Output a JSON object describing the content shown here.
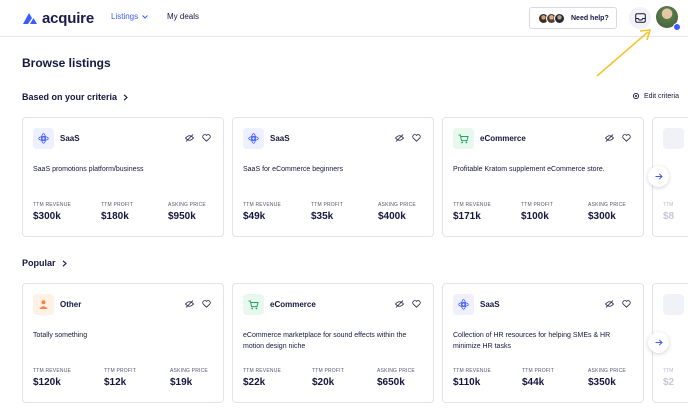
{
  "header": {
    "brand": "acquire",
    "nav": {
      "listings": "Listings",
      "my_deals": "My deals"
    },
    "help": "Need help?"
  },
  "page": {
    "title": "Browse listings"
  },
  "sections": {
    "criteria": {
      "title": "Based on your criteria",
      "edit_label": "Edit criteria",
      "cards": [
        {
          "category": "SaaS",
          "description": "SaaS promotions platform/business",
          "metrics": [
            {
              "label": "TTM REVENUE",
              "value": "$300k"
            },
            {
              "label": "TTM PROFIT",
              "value": "$180k"
            },
            {
              "label": "ASKING PRICE",
              "value": "$950k"
            }
          ]
        },
        {
          "category": "SaaS",
          "description": "SaaS for eCommerce beginners",
          "metrics": [
            {
              "label": "TTM REVENUE",
              "value": "$49k"
            },
            {
              "label": "TTM PROFIT",
              "value": "$35k"
            },
            {
              "label": "ASKING PRICE",
              "value": "$400k"
            }
          ]
        },
        {
          "category": "eCommerce",
          "description": "Profitable Kratom supplement eCommerce store.",
          "metrics": [
            {
              "label": "TTM REVENUE",
              "value": "$171k"
            },
            {
              "label": "TTM PROFIT",
              "value": "$100k"
            },
            {
              "label": "ASKING PRICE",
              "value": "$300k"
            }
          ]
        }
      ],
      "peek": {
        "label": "TTM",
        "value": "$8"
      }
    },
    "popular": {
      "title": "Popular",
      "cards": [
        {
          "category": "Other",
          "description": "Totally something",
          "metrics": [
            {
              "label": "TTM REVENUE",
              "value": "$120k"
            },
            {
              "label": "TTM PROFIT",
              "value": "$12k"
            },
            {
              "label": "ASKING PRICE",
              "value": "$19k"
            }
          ]
        },
        {
          "category": "eCommerce",
          "description": "eCommerce marketplace for sound effects within the motion design niche",
          "metrics": [
            {
              "label": "TTM REVENUE",
              "value": "$22k"
            },
            {
              "label": "TTM PROFIT",
              "value": "$20k"
            },
            {
              "label": "ASKING PRICE",
              "value": "$650k"
            }
          ]
        },
        {
          "category": "SaaS",
          "description": "Collection of HR resources for helping SMEs & HR minimize HR tasks",
          "metrics": [
            {
              "label": "TTM REVENUE",
              "value": "$110k"
            },
            {
              "label": "TTM PROFIT",
              "value": "$44k"
            },
            {
              "label": "ASKING PRICE",
              "value": "$350k"
            }
          ]
        }
      ],
      "peek": {
        "label": "TTM",
        "value": "$2"
      }
    }
  },
  "colors": {
    "accent": "#3b5bfd",
    "saas_bg": "#eef0ff",
    "ecommerce_bg": "#e9f8ee",
    "other_bg": "#fff1e6",
    "arrow": "#f4c430"
  },
  "icons": {
    "logo": "acquire-logo-icon",
    "inbox": "inbox-icon",
    "saas": "saas-icon",
    "ecommerce": "cart-icon",
    "other": "other-icon",
    "hide": "eye-off-icon",
    "favorite": "heart-icon",
    "next": "arrow-right-icon",
    "settings": "gear-icon"
  }
}
